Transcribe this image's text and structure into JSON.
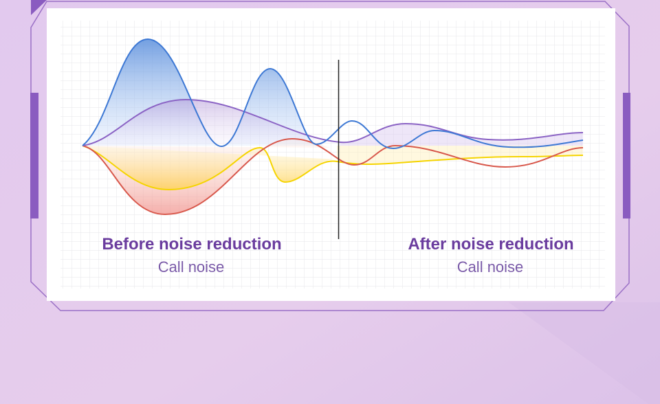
{
  "panels": [
    {
      "title": "Before noise reduction",
      "subtitle": "Call noise"
    },
    {
      "title": "After noise reduction",
      "subtitle": "Call noise"
    }
  ]
}
